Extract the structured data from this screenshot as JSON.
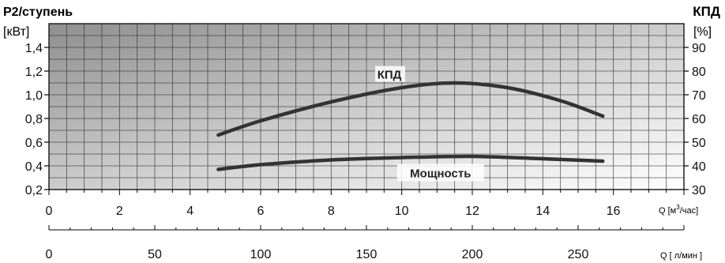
{
  "chart_data": {
    "type": "line",
    "left_axis": {
      "title": "P2/ступень",
      "unit": "[кВт]",
      "range": [
        0.2,
        1.6
      ],
      "ticks": [
        "0,2",
        "0,4",
        "0,6",
        "0,8",
        "1,0",
        "1,2",
        "1,4"
      ]
    },
    "right_axis": {
      "title": "КПД",
      "unit": "[%]",
      "range": [
        30,
        100
      ],
      "ticks": [
        "30",
        "40",
        "50",
        "60",
        "70",
        "80",
        "90"
      ]
    },
    "x_axis": {
      "unit_prefix": "Q [м",
      "unit_sup": "3",
      "unit_suffix": "/час]",
      "range": [
        0,
        18
      ],
      "ticks": [
        "0",
        "2",
        "4",
        "6",
        "8",
        "10",
        "12",
        "14",
        "16"
      ]
    },
    "x2_axis": {
      "unit": "Q [ л/мин ]",
      "range": [
        0,
        300
      ],
      "ticks": [
        "0",
        "50",
        "100",
        "150",
        "200",
        "250"
      ]
    },
    "grid": true,
    "series": [
      {
        "name": "КПД",
        "axis": "right",
        "x": [
          4.8,
          6,
          8,
          10,
          11.5,
          13,
          14.5,
          15.7
        ],
        "y": [
          53,
          59,
          67,
          73,
          75,
          73,
          67.5,
          61
        ]
      },
      {
        "name": "Мощность",
        "axis": "left",
        "x": [
          4.8,
          6,
          8,
          10,
          12,
          14,
          15.7
        ],
        "y": [
          0.37,
          0.41,
          0.45,
          0.47,
          0.48,
          0.46,
          0.44
        ]
      }
    ]
  }
}
